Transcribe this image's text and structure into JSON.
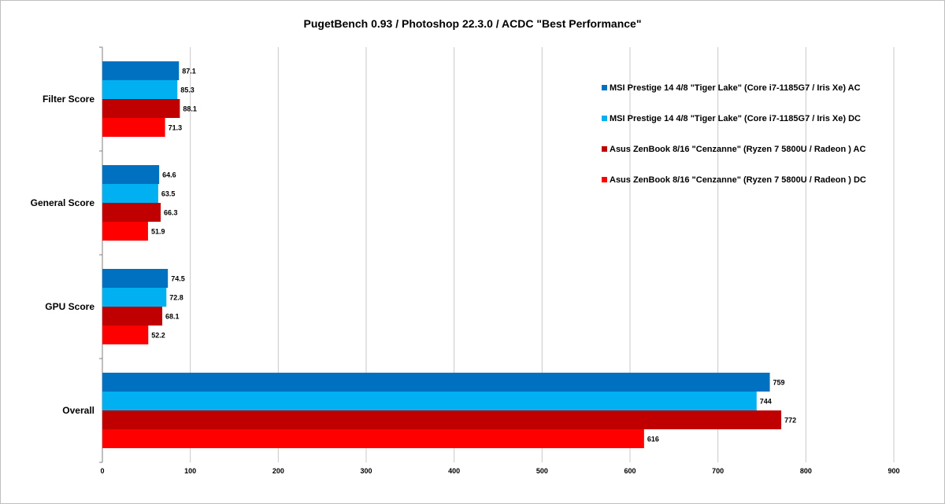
{
  "chart_data": {
    "type": "bar",
    "orientation": "horizontal",
    "title": "PugetBench  0.93 / Photoshop 22.3.0 / ACDC \"Best Performance\"",
    "xlabel": "",
    "ylabel": "",
    "xlim": [
      0,
      900
    ],
    "x_ticks": [
      "0",
      "100",
      "200",
      "300",
      "400",
      "500",
      "600",
      "700",
      "800",
      "900"
    ],
    "grid": "vertical",
    "legend_position": "top-right",
    "categories": [
      "Filter Score",
      "General Score",
      "GPU Score",
      "Overall"
    ],
    "series": [
      {
        "name": "MSI Prestige 14 4/8  \"Tiger Lake\" (Core i7-1185G7 / Iris Xe) AC",
        "color": "#0070c0",
        "values": [
          87.1,
          64.6,
          74.5,
          759
        ],
        "labels": [
          "87.1",
          "64.6",
          "74.5",
          "759"
        ]
      },
      {
        "name": "MSI Prestige 14 4/8  \"Tiger Lake\" (Core i7-1185G7 / Iris Xe) DC",
        "color": "#00b0f0",
        "values": [
          85.3,
          63.5,
          72.8,
          744
        ],
        "labels": [
          "85.3",
          "63.5",
          "72.8",
          "744"
        ]
      },
      {
        "name": "Asus ZenBook 8/16  \"Cenzanne\" (Ryzen 7 5800U / Radeon ) AC",
        "color": "#c00000",
        "values": [
          88.1,
          66.3,
          68.1,
          772
        ],
        "labels": [
          "88.1",
          "66.3",
          "68.1",
          "772"
        ]
      },
      {
        "name": "Asus ZenBook 8/16  \"Cenzanne\" (Ryzen 7 5800U / Radeon ) DC",
        "color": "#ff0000",
        "values": [
          71.3,
          51.9,
          52.2,
          616
        ],
        "labels": [
          "71.3",
          "51.9",
          "52.2",
          "616"
        ]
      }
    ]
  }
}
